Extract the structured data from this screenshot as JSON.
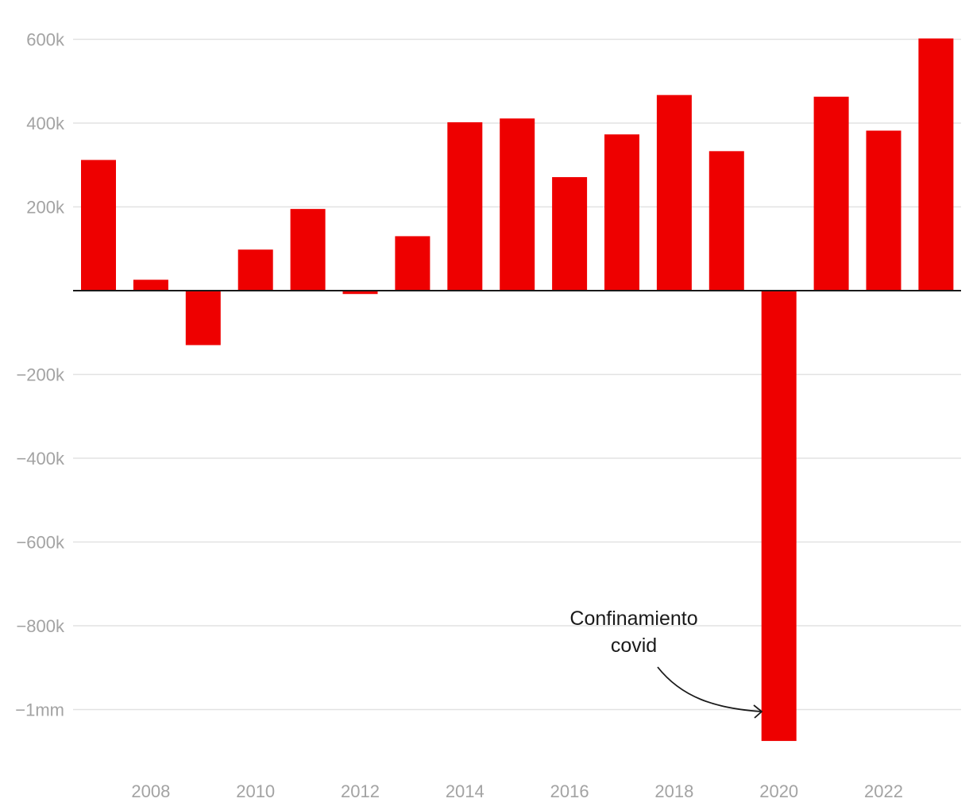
{
  "chart_data": {
    "type": "bar",
    "title": "",
    "xlabel": "",
    "ylabel": "",
    "categories": [
      2007,
      2008,
      2009,
      2010,
      2011,
      2012,
      2013,
      2014,
      2015,
      2016,
      2017,
      2018,
      2019,
      2020,
      2021,
      2022,
      2023
    ],
    "values": [
      312000,
      26000,
      -130000,
      98000,
      195000,
      -8000,
      130000,
      402000,
      411000,
      271000,
      373000,
      467000,
      333000,
      -1075000,
      463000,
      382000,
      602000
    ],
    "ylim": [
      -1150000,
      660000
    ],
    "yticks": [
      {
        "value": 600000,
        "label": "600k"
      },
      {
        "value": 400000,
        "label": "400k"
      },
      {
        "value": 200000,
        "label": "200k"
      },
      {
        "value": -200000,
        "label": "−200k"
      },
      {
        "value": -400000,
        "label": "−400k"
      },
      {
        "value": -600000,
        "label": "−600k"
      },
      {
        "value": -800000,
        "label": "−800k"
      },
      {
        "value": -1000000,
        "label": "−1mm"
      }
    ],
    "xticks": [
      {
        "year": 2008,
        "label": "2008"
      },
      {
        "year": 2010,
        "label": "2010"
      },
      {
        "year": 2012,
        "label": "2012"
      },
      {
        "year": 2014,
        "label": "2014"
      },
      {
        "year": 2016,
        "label": "2016"
      },
      {
        "year": 2018,
        "label": "2018"
      },
      {
        "year": 2020,
        "label": "2020"
      },
      {
        "year": 2022,
        "label": "2022"
      }
    ],
    "grid": true,
    "bar_color": "#ee0000",
    "grid_color": "#e2e2e2",
    "zero_line_color": "#1a1a1a",
    "annotations": [
      {
        "target_year": 2020,
        "lines": [
          "Confinamiento",
          "covid"
        ]
      }
    ]
  }
}
